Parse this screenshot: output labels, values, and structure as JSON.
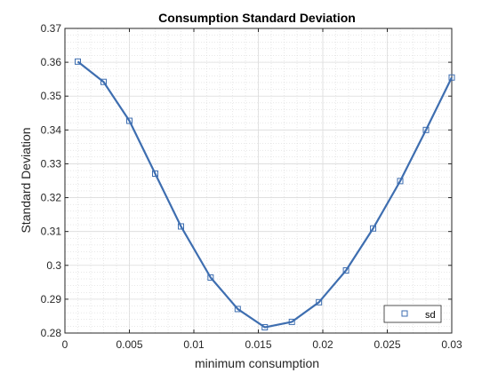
{
  "chart_data": {
    "type": "line",
    "title": "Consumption Standard Deviation",
    "xlabel": "minimum consumption",
    "ylabel": "Standard Deviation",
    "xlim": [
      0,
      0.03
    ],
    "ylim": [
      0.28,
      0.37
    ],
    "xticks": [
      0,
      0.005,
      0.01,
      0.015,
      0.02,
      0.025,
      0.03
    ],
    "xtick_labels": [
      "0",
      "0.005",
      "0.01",
      "0.015",
      "0.02",
      "0.025",
      "0.03"
    ],
    "yticks": [
      0.28,
      0.29,
      0.3,
      0.31,
      0.32,
      0.33,
      0.34,
      0.35,
      0.36,
      0.37
    ],
    "ytick_labels": [
      "0.28",
      "0.29",
      "0.3",
      "0.31",
      "0.32",
      "0.33",
      "0.34",
      "0.35",
      "0.36",
      "0.37"
    ],
    "grid": true,
    "minor_grid": true,
    "legend_position": "bottom-right",
    "series": [
      {
        "name": "sd",
        "color": "#3e6eb0",
        "marker": "square",
        "x": [
          0.001,
          0.003,
          0.005,
          0.007,
          0.009,
          0.0113,
          0.0134,
          0.0155,
          0.0176,
          0.0197,
          0.0218,
          0.0239,
          0.026,
          0.028,
          0.03
        ],
        "y": [
          0.3602,
          0.3542,
          0.3427,
          0.3271,
          0.3115,
          0.2964,
          0.2871,
          0.2817,
          0.2833,
          0.2891,
          0.2985,
          0.3109,
          0.3249,
          0.34,
          0.3555
        ]
      }
    ]
  }
}
